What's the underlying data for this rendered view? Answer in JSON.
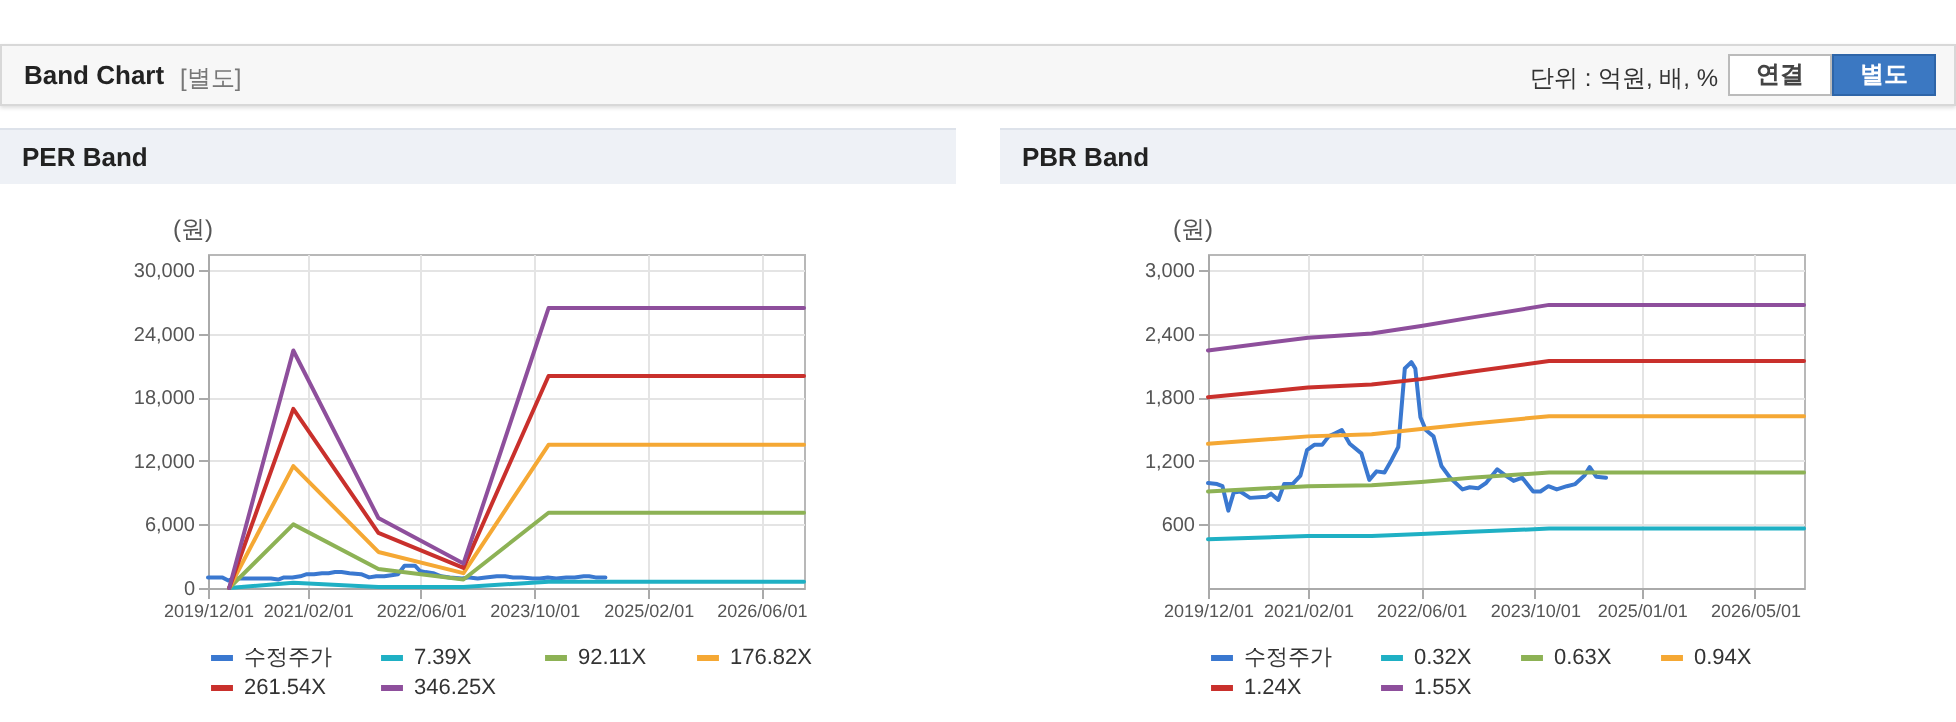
{
  "chart_data": [
    {
      "type": "line",
      "title": "PER Band",
      "ylabel": "(원)",
      "annotations": [
        "Band Chart",
        "[별도]",
        "단위 : 억원, 배, %",
        "연결",
        "별도"
      ],
      "xlim": [
        "2019-12-01",
        "2026-12-01"
      ],
      "xticks": [
        {
          "value": "2019-12-01",
          "label": "2019/12/01"
        },
        {
          "value": "2021-02-01",
          "label": "2021/02/01"
        },
        {
          "value": "2022-06-01",
          "label": "2022/06/01"
        },
        {
          "value": "2023-10-01",
          "label": "2023/10/01"
        },
        {
          "value": "2025-02-01",
          "label": "2025/02/01"
        },
        {
          "value": "2026-06-01",
          "label": "2026/06/01"
        }
      ],
      "ylim": [
        0,
        31500
      ],
      "yticks": [
        0,
        {
          "value": 6000,
          "label": "6,000"
        },
        {
          "value": 12000,
          "label": "12,000"
        },
        {
          "value": 18000,
          "label": "18,000"
        },
        {
          "value": 24000,
          "label": "24,000"
        },
        {
          "value": 30000,
          "label": "30,000"
        }
      ],
      "grid": true,
      "legend": "bottom",
      "x": [
        "2020-03-01",
        "2020-12-01",
        "2021-12-01",
        "2022-12-01",
        "2023-12-01",
        "2026-12-01"
      ],
      "series": [
        {
          "name": "수정주가",
          "color": "#3a78d0",
          "x": [
            "2019-12-01",
            "2020-01-09",
            "2020-02-01",
            "2020-02-26",
            "2020-03-20",
            "2020-04-17",
            "2020-05-29",
            "2020-08-07",
            "2020-08-27",
            "2020-09-27",
            "2020-10-22",
            "2020-11-27",
            "2020-12-31",
            "2021-01-28",
            "2021-02-28",
            "2021-04-03",
            "2021-05-01",
            "2021-05-29",
            "2021-06-26",
            "2021-07-30",
            "2021-09-18",
            "2021-10-22",
            "2021-11-22",
            "2021-12-26",
            "2022-01-26",
            "2022-02-23",
            "2022-03-23",
            "2022-04-20",
            "2022-05-07",
            "2022-05-29",
            "2022-06-21",
            "2022-07-24",
            "2022-08-27",
            "2022-10-03",
            "2022-11-25",
            "2022-12-26",
            "2023-01-31",
            "2023-03-06",
            "2023-04-23",
            "2023-05-29",
            "2023-07-02",
            "2023-08-08",
            "2023-09-24",
            "2023-10-25",
            "2023-11-28",
            "2024-01-03",
            "2024-02-15",
            "2024-03-22",
            "2024-04-30",
            "2024-05-23",
            "2024-06-20",
            "2024-08-01"
          ],
          "values": [
            1000,
            1000,
            1000,
            700,
            900,
            900,
            900,
            900,
            900,
            800,
            1000,
            1000,
            1100,
            1300,
            1300,
            1400,
            1400,
            1500,
            1500,
            1400,
            1300,
            1000,
            1100,
            1100,
            1200,
            1300,
            2100,
            2100,
            2100,
            1600,
            1500,
            1400,
            1100,
            1000,
            900,
            1000,
            900,
            1000,
            1100,
            1100,
            1000,
            1000,
            900,
            900,
            1000,
            900,
            1000,
            1000,
            1100,
            1100,
            1000,
            1000
          ]
        },
        {
          "name": "7.39X",
          "color": "#1fb0c4",
          "values": [
            0,
            500,
            100,
            100,
            600,
            600
          ]
        },
        {
          "name": "92.11X",
          "color": "#8db255",
          "values": [
            0,
            6000,
            1800,
            800,
            7100,
            7100
          ]
        },
        {
          "name": "176.82X",
          "color": "#f5a834",
          "values": [
            0,
            11500,
            3400,
            1400,
            13500,
            13500
          ]
        },
        {
          "name": "261.54X",
          "color": "#c9302c",
          "values": [
            0,
            16900,
            5200,
            1900,
            20000,
            20000
          ]
        },
        {
          "name": "346.25X",
          "color": "#8e4f9c",
          "values": [
            0,
            22400,
            6600,
            2300,
            26400,
            26400
          ]
        }
      ]
    },
    {
      "type": "line",
      "title": "PBR Band",
      "ylabel": "(원)",
      "xlim": [
        "2019-12-01",
        "2026-11-27"
      ],
      "xticks": [
        {
          "value": "2019-12-01",
          "label": "2019/12/01"
        },
        {
          "value": "2021-02-01",
          "label": "2021/02/01"
        },
        {
          "value": "2022-06-01",
          "label": "2022/06/01"
        },
        {
          "value": "2023-10-01",
          "label": "2023/10/01"
        },
        {
          "value": "2025-01-01",
          "label": "2025/01/01"
        },
        {
          "value": "2026-05-01",
          "label": "2026/05/01"
        }
      ],
      "ylim": [
        0,
        3150
      ],
      "yticks": [
        600,
        {
          "value": 1200,
          "label": "1,200"
        },
        {
          "value": 1800,
          "label": "1,800"
        },
        {
          "value": 2400,
          "label": "2,400"
        },
        {
          "value": 3000,
          "label": "3,000"
        }
      ],
      "grid": true,
      "legend": "bottom",
      "x": [
        "2019-12-01",
        "2021-02-01",
        "2021-11-01",
        "2022-06-01",
        "2023-01-01",
        "2023-12-01",
        "2026-11-27"
      ],
      "series": [
        {
          "name": "수정주가",
          "color": "#3a78d0",
          "x": [
            "2019-12-01",
            "2020-01-09",
            "2020-02-01",
            "2020-02-26",
            "2020-03-20",
            "2020-04-17",
            "2020-05-29",
            "2020-08-07",
            "2020-08-27",
            "2020-09-27",
            "2020-10-22",
            "2020-11-27",
            "2020-12-31",
            "2021-01-28",
            "2021-02-28",
            "2021-04-03",
            "2021-05-01",
            "2021-05-29",
            "2021-06-26",
            "2021-07-30",
            "2021-09-18",
            "2021-10-22",
            "2021-11-22",
            "2021-12-26",
            "2022-01-26",
            "2022-02-23",
            "2022-03-23",
            "2022-04-20",
            "2022-05-07",
            "2022-05-29",
            "2022-06-21",
            "2022-07-24",
            "2022-08-27",
            "2022-10-03",
            "2022-11-25",
            "2022-12-26",
            "2023-01-31",
            "2023-03-06",
            "2023-04-23",
            "2023-05-29",
            "2023-07-02",
            "2023-08-08",
            "2023-09-24",
            "2023-10-25",
            "2023-11-28",
            "2024-01-03",
            "2024-02-15",
            "2024-03-22",
            "2024-04-30",
            "2024-05-23",
            "2024-06-20",
            "2024-08-01"
          ],
          "values": [
            990,
            980,
            960,
            730,
            900,
            910,
            850,
            860,
            890,
            830,
            980,
            980,
            1060,
            1300,
            1350,
            1350,
            1430,
            1460,
            1490,
            1360,
            1270,
            1020,
            1100,
            1090,
            1210,
            1330,
            2070,
            2130,
            2070,
            1610,
            1490,
            1430,
            1150,
            1040,
            930,
            950,
            940,
            990,
            1120,
            1060,
            1010,
            1040,
            910,
            910,
            960,
            930,
            960,
            980,
            1060,
            1140,
            1050,
            1040
          ]
        },
        {
          "name": "0.32X",
          "color": "#1fb0c4",
          "values": [
            460,
            490,
            490,
            510,
            530,
            560,
            560
          ]
        },
        {
          "name": "0.63X",
          "color": "#8db255",
          "values": [
            910,
            960,
            970,
            1000,
            1040,
            1090,
            1090
          ]
        },
        {
          "name": "0.94X",
          "color": "#f5a834",
          "values": [
            1360,
            1430,
            1450,
            1500,
            1550,
            1620,
            1620
          ]
        },
        {
          "name": "1.24X",
          "color": "#c9302c",
          "values": [
            1800,
            1890,
            1920,
            1970,
            2040,
            2140,
            2140
          ]
        },
        {
          "name": "1.55X",
          "color": "#8e4f9c",
          "values": [
            2240,
            2360,
            2400,
            2470,
            2550,
            2670,
            2670
          ]
        }
      ]
    }
  ]
}
